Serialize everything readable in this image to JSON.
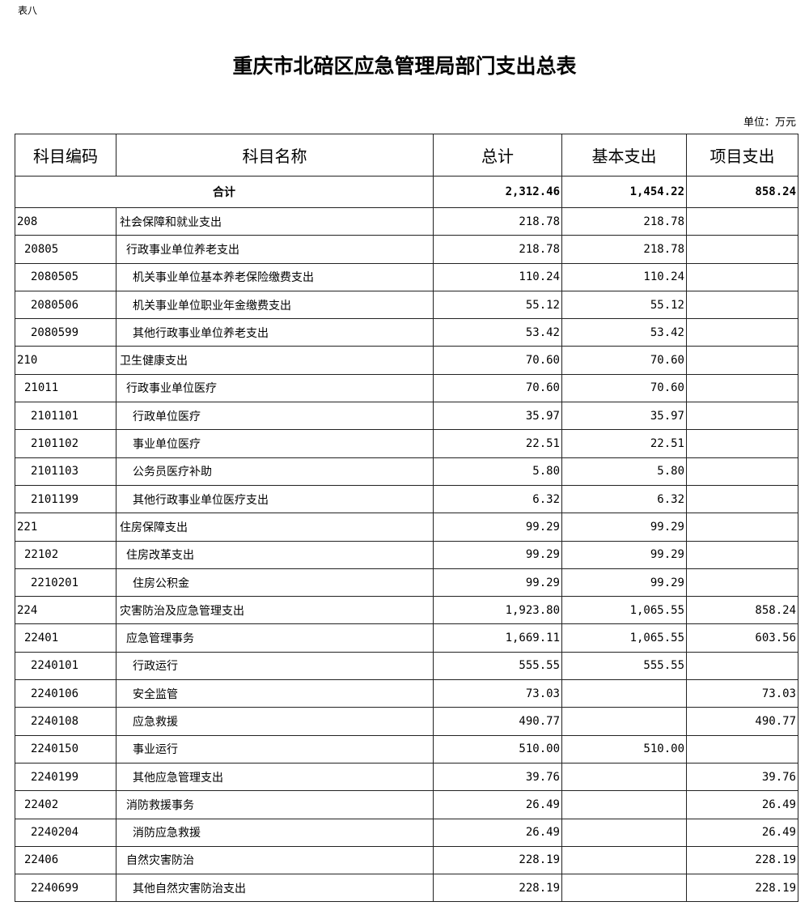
{
  "table_label": "表八",
  "title": "重庆市北碚区应急管理局部门支出总表",
  "unit": "单位：万元",
  "headers": [
    "科目编码",
    "科目名称",
    "总计",
    "基本支出",
    "项目支出"
  ],
  "total": {
    "label": "合计",
    "total": "2,312.46",
    "basic": "1,454.22",
    "project": "858.24"
  },
  "rows": [
    {
      "level": 1,
      "code": "208",
      "name": "社会保障和就业支出",
      "total": "218.78",
      "basic": "218.78",
      "project": ""
    },
    {
      "level": 2,
      "code": "20805",
      "name": "行政事业单位养老支出",
      "total": "218.78",
      "basic": "218.78",
      "project": ""
    },
    {
      "level": 3,
      "code": "2080505",
      "name": "机关事业单位基本养老保险缴费支出",
      "total": "110.24",
      "basic": "110.24",
      "project": ""
    },
    {
      "level": 3,
      "code": "2080506",
      "name": "机关事业单位职业年金缴费支出",
      "total": "55.12",
      "basic": "55.12",
      "project": ""
    },
    {
      "level": 3,
      "code": "2080599",
      "name": "其他行政事业单位养老支出",
      "total": "53.42",
      "basic": "53.42",
      "project": ""
    },
    {
      "level": 1,
      "code": "210",
      "name": "卫生健康支出",
      "total": "70.60",
      "basic": "70.60",
      "project": ""
    },
    {
      "level": 2,
      "code": "21011",
      "name": "行政事业单位医疗",
      "total": "70.60",
      "basic": "70.60",
      "project": ""
    },
    {
      "level": 3,
      "code": "2101101",
      "name": "行政单位医疗",
      "total": "35.97",
      "basic": "35.97",
      "project": ""
    },
    {
      "level": 3,
      "code": "2101102",
      "name": "事业单位医疗",
      "total": "22.51",
      "basic": "22.51",
      "project": ""
    },
    {
      "level": 3,
      "code": "2101103",
      "name": "公务员医疗补助",
      "total": "5.80",
      "basic": "5.80",
      "project": ""
    },
    {
      "level": 3,
      "code": "2101199",
      "name": "其他行政事业单位医疗支出",
      "total": "6.32",
      "basic": "6.32",
      "project": ""
    },
    {
      "level": 1,
      "code": "221",
      "name": "住房保障支出",
      "total": "99.29",
      "basic": "99.29",
      "project": ""
    },
    {
      "level": 2,
      "code": "22102",
      "name": "住房改革支出",
      "total": "99.29",
      "basic": "99.29",
      "project": ""
    },
    {
      "level": 3,
      "code": "2210201",
      "name": "住房公积金",
      "total": "99.29",
      "basic": "99.29",
      "project": ""
    },
    {
      "level": 1,
      "code": "224",
      "name": "灾害防治及应急管理支出",
      "total": "1,923.80",
      "basic": "1,065.55",
      "project": "858.24"
    },
    {
      "level": 2,
      "code": "22401",
      "name": "应急管理事务",
      "total": "1,669.11",
      "basic": "1,065.55",
      "project": "603.56"
    },
    {
      "level": 3,
      "code": "2240101",
      "name": "行政运行",
      "total": "555.55",
      "basic": "555.55",
      "project": ""
    },
    {
      "level": 3,
      "code": "2240106",
      "name": "安全监管",
      "total": "73.03",
      "basic": "",
      "project": "73.03"
    },
    {
      "level": 3,
      "code": "2240108",
      "name": "应急救援",
      "total": "490.77",
      "basic": "",
      "project": "490.77"
    },
    {
      "level": 3,
      "code": "2240150",
      "name": "事业运行",
      "total": "510.00",
      "basic": "510.00",
      "project": ""
    },
    {
      "level": 3,
      "code": "2240199",
      "name": "其他应急管理支出",
      "total": "39.76",
      "basic": "",
      "project": "39.76"
    },
    {
      "level": 2,
      "code": "22402",
      "name": "消防救援事务",
      "total": "26.49",
      "basic": "",
      "project": "26.49"
    },
    {
      "level": 3,
      "code": "2240204",
      "name": "消防应急救援",
      "total": "26.49",
      "basic": "",
      "project": "26.49"
    },
    {
      "level": 2,
      "code": "22406",
      "name": "自然灾害防治",
      "total": "228.19",
      "basic": "",
      "project": "228.19"
    },
    {
      "level": 3,
      "code": "2240699",
      "name": "其他自然灾害防治支出",
      "total": "228.19",
      "basic": "",
      "project": "228.19"
    }
  ]
}
